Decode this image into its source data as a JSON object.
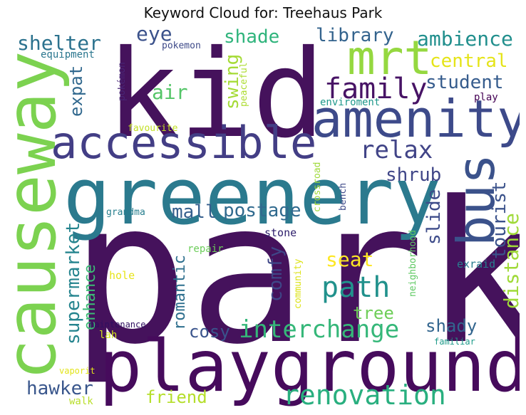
{
  "title": "Keyword Cloud for: Treehaus Park",
  "chart_data": {
    "type": "wordcloud",
    "title": "Keyword Cloud for: Treehaus Park",
    "background": "#ffffff",
    "colormap": "viridis",
    "words": [
      {
        "text": "park",
        "color": "#45125c"
      },
      {
        "text": "kid",
        "color": "#45125c"
      },
      {
        "text": "playground",
        "color": "#460b5c"
      },
      {
        "text": "greenery",
        "color": "#2b7a8e"
      },
      {
        "text": "causeway",
        "color": "#7cd250"
      },
      {
        "text": "amenity",
        "color": "#3d4a8a"
      },
      {
        "text": "accessible",
        "color": "#433e85"
      },
      {
        "text": "mrt",
        "color": "#95d840"
      },
      {
        "text": "bus",
        "color": "#3b528b"
      },
      {
        "text": "interchange",
        "color": "#35b779"
      },
      {
        "text": "renovation",
        "color": "#29af7f"
      },
      {
        "text": "family",
        "color": "#471365"
      },
      {
        "text": "relax",
        "color": "#414487"
      },
      {
        "text": "path",
        "color": "#21918c"
      },
      {
        "text": "shelter",
        "color": "#2c728e"
      },
      {
        "text": "ambience",
        "color": "#218f8d"
      },
      {
        "text": "library",
        "color": "#33638d"
      },
      {
        "text": "student",
        "color": "#365c8d"
      },
      {
        "text": "central",
        "color": "#e5e419"
      },
      {
        "text": "shade",
        "color": "#2fb47c"
      },
      {
        "text": "eye",
        "color": "#3b528b"
      },
      {
        "text": "air",
        "color": "#54c568"
      },
      {
        "text": "swing",
        "color": "#a5db36"
      },
      {
        "text": "expat",
        "color": "#31688e"
      },
      {
        "text": "shrub",
        "color": "#404688"
      },
      {
        "text": "tourist",
        "color": "#3b528b"
      },
      {
        "text": "distance",
        "color": "#a0da39"
      },
      {
        "text": "mall",
        "color": "#355f8d"
      },
      {
        "text": "postage",
        "color": "#306a8e"
      },
      {
        "text": "slide",
        "color": "#3e4c8a"
      },
      {
        "text": "supermarket",
        "color": "#25848e"
      },
      {
        "text": "enhance",
        "color": "#3bbb75"
      },
      {
        "text": "romantic",
        "color": "#2e6f8e"
      },
      {
        "text": "comfy",
        "color": "#3f4788"
      },
      {
        "text": "cosy",
        "color": "#3a548c"
      },
      {
        "text": "seat",
        "color": "#fde725"
      },
      {
        "text": "tree",
        "color": "#6ece58"
      },
      {
        "text": "shady",
        "color": "#32658e"
      },
      {
        "text": "hawker",
        "color": "#39568c"
      },
      {
        "text": "friend",
        "color": "#b5de2b"
      },
      {
        "text": "equipment",
        "color": "#2a768e"
      },
      {
        "text": "pokemon",
        "color": "#3e4a89"
      },
      {
        "text": "pokémon",
        "color": "#482576"
      },
      {
        "text": "peaceful",
        "color": "#addc30"
      },
      {
        "text": "favourite",
        "color": "#c2df23"
      },
      {
        "text": "enviroment",
        "color": "#1f988b"
      },
      {
        "text": "play",
        "color": "#440154"
      },
      {
        "text": "crossroad",
        "color": "#9fda3a"
      },
      {
        "text": "bench",
        "color": "#3e4989"
      },
      {
        "text": "grandma",
        "color": "#277f8e"
      },
      {
        "text": "neighborhood",
        "color": "#5ec962"
      },
      {
        "text": "community",
        "color": "#dde318"
      },
      {
        "text": "stone",
        "color": "#2d1e6b"
      },
      {
        "text": "repair",
        "color": "#6ccd5a"
      },
      {
        "text": "hole",
        "color": "#e7e419"
      },
      {
        "text": "exraid",
        "color": "#287d8e"
      },
      {
        "text": "maintenance",
        "color": "#2f0f60"
      },
      {
        "text": "lah",
        "color": "#d2e21b"
      },
      {
        "text": "familiar",
        "color": "#1e9b8a"
      },
      {
        "text": "vaporit",
        "color": "#e2e418"
      },
      {
        "text": "walk",
        "color": "#b8de29"
      }
    ]
  }
}
